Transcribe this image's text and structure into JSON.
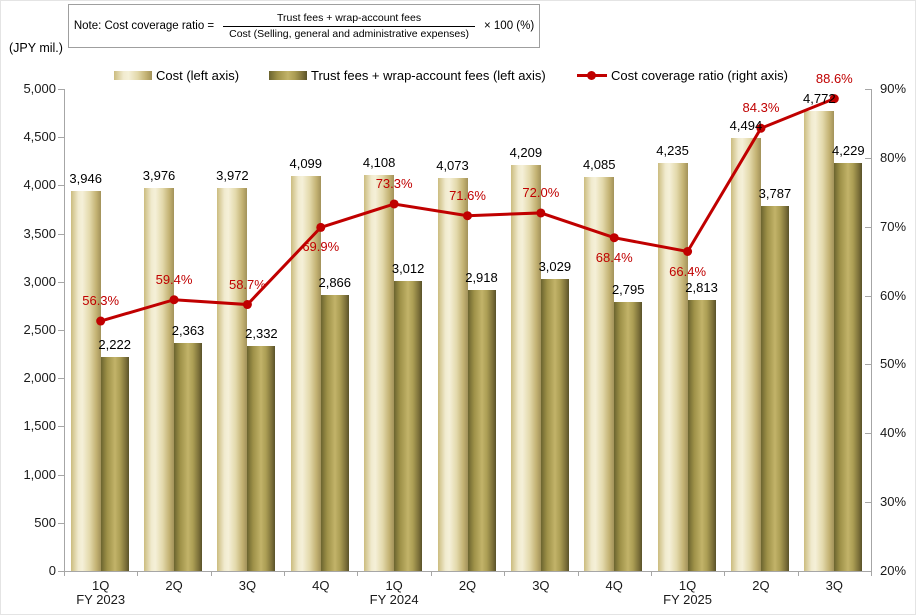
{
  "note": {
    "prefix": "Note:  Cost coverage ratio =",
    "numerator": "Trust fees +  wrap-account fees",
    "denominator": "Cost (Selling, general and administrative expenses)",
    "suffix": "×  100  (%)"
  },
  "left_axis_unit": "(JPY mil.)",
  "legend": [
    {
      "label": "Cost (left axis)"
    },
    {
      "label": "Trust fees + wrap-account fees (left axis)"
    },
    {
      "label": "Cost coverage ratio (right axis)"
    }
  ],
  "chart_data": {
    "type": "bar",
    "subtype": "grouped bars with line on secondary axis",
    "categories": [
      "1Q",
      "2Q",
      "3Q",
      "4Q",
      "1Q",
      "2Q",
      "3Q",
      "4Q",
      "1Q",
      "2Q",
      "3Q"
    ],
    "fiscal_years": [
      {
        "label": "FY 2023",
        "category_index": 0
      },
      {
        "label": "FY 2024",
        "category_index": 4
      },
      {
        "label": "FY 2025",
        "category_index": 8
      }
    ],
    "series": [
      {
        "name": "Cost (left axis)",
        "axis": "left",
        "kind": "bar",
        "values": [
          3946,
          3976,
          3972,
          4099,
          4108,
          4073,
          4209,
          4085,
          4235,
          4494,
          4772
        ],
        "value_labels": [
          "3,946",
          "3,976",
          "3,972",
          "4,099",
          "4,108",
          "4,073",
          "4,209",
          "4,085",
          "4,235",
          "4,494",
          "4,772"
        ]
      },
      {
        "name": "Trust fees + wrap-account fees (left axis)",
        "axis": "left",
        "kind": "bar",
        "values": [
          2222,
          2363,
          2332,
          2866,
          3012,
          2918,
          3029,
          2795,
          2813,
          3787,
          4229
        ],
        "value_labels": [
          "2,222",
          "2,363",
          "2,332",
          "2,866",
          "3,012",
          "2,918",
          "3,029",
          "2,795",
          "2,813",
          "3,787",
          "4,229"
        ]
      },
      {
        "name": "Cost coverage ratio (right axis)",
        "axis": "right",
        "kind": "line",
        "values": [
          56.3,
          59.4,
          58.7,
          69.9,
          73.3,
          71.6,
          72.0,
          68.4,
          66.4,
          84.3,
          88.6
        ],
        "value_labels": [
          "56.3%",
          "59.4%",
          "58.7%",
          "69.9%",
          "73.3%",
          "71.6%",
          "72.0%",
          "68.4%",
          "66.4%",
          "84.3%",
          "88.6%"
        ],
        "label_positions": [
          "above",
          "above",
          "above",
          "below",
          "above",
          "above",
          "above",
          "below",
          "below",
          "above",
          "above"
        ]
      }
    ],
    "left_axis": {
      "min": 0,
      "max": 5000,
      "step": 500,
      "tick_labels": [
        "0",
        "500",
        "1,000",
        "1,500",
        "2,000",
        "2,500",
        "3,000",
        "3,500",
        "4,000",
        "4,500",
        "5,000"
      ]
    },
    "right_axis": {
      "min": 20,
      "max": 90,
      "step": 10,
      "tick_labels": [
        "20%",
        "30%",
        "40%",
        "50%",
        "60%",
        "70%",
        "80%",
        "90%"
      ]
    },
    "grid": false,
    "legend_position": "top",
    "colors": {
      "cost_bar": "#e8dfb6",
      "trust_bar": "#a99b52",
      "line": "#c00000",
      "axis": "#a6a6a6",
      "ratio_label": "#c00000"
    }
  }
}
